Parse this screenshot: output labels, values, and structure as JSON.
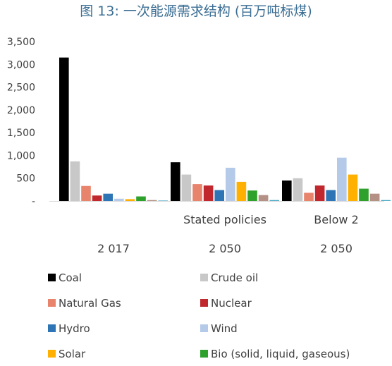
{
  "chart_data": {
    "type": "bar",
    "title": "图 13: 一次能源需求结构 (百万吨标煤)",
    "xlabel": "",
    "ylabel": "",
    "ylim": [
      0,
      3500
    ],
    "yticks": [
      "3,500",
      "3,000",
      "2,500",
      "2,000",
      "1,500",
      "1,000",
      "500",
      "-"
    ],
    "ytick_values": [
      3500,
      3000,
      2500,
      2000,
      1500,
      1000,
      500,
      0
    ],
    "grid": false,
    "legend_position": "bottom",
    "categories": [
      {
        "scenario": "",
        "year": "2 017"
      },
      {
        "scenario": "Stated policies",
        "year": "2 050"
      },
      {
        "scenario": "Below 2",
        "year": "2 050"
      }
    ],
    "series": [
      {
        "name": "Coal",
        "color": "#000000",
        "values": [
          3150,
          850,
          450
        ]
      },
      {
        "name": "Crude oil",
        "color": "#c8c8c8",
        "values": [
          870,
          580,
          500
        ]
      },
      {
        "name": "Natural Gas",
        "color": "#e8836c",
        "values": [
          330,
          370,
          180
        ]
      },
      {
        "name": "Nuclear",
        "color": "#c0282d",
        "values": [
          120,
          340,
          340
        ]
      },
      {
        "name": "Hydro",
        "color": "#2e75b6",
        "values": [
          160,
          240,
          240
        ]
      },
      {
        "name": "Wind",
        "color": "#b4cae8",
        "values": [
          50,
          730,
          950
        ]
      },
      {
        "name": "Solar",
        "color": "#ffb000",
        "values": [
          40,
          420,
          580
        ]
      },
      {
        "name": "Bio (solid, liquid, gaseous)",
        "color": "#2ea02c",
        "values": [
          100,
          230,
          270
        ]
      },
      {
        "name": "",
        "color": "#b49184",
        "values": [
          20,
          130,
          160
        ]
      },
      {
        "name": "",
        "color": "#4aa8c4",
        "values": [
          10,
          20,
          20
        ]
      }
    ]
  }
}
